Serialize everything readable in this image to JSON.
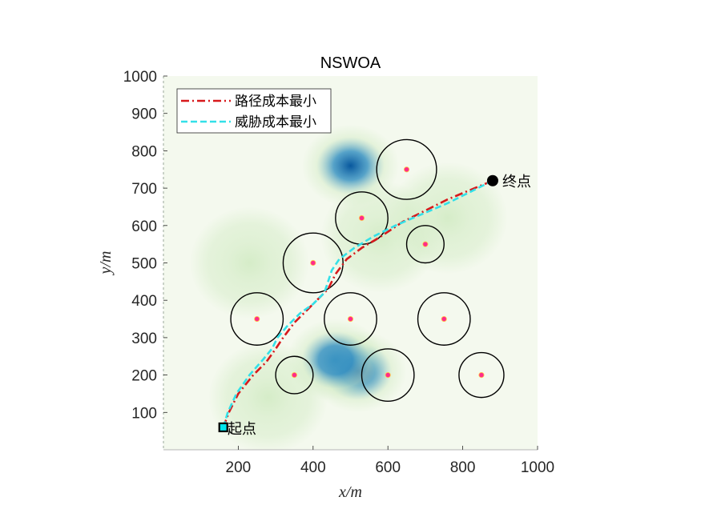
{
  "chart_data": {
    "type": "line",
    "title": "NSWOA",
    "xlabel": "x/m",
    "ylabel": "y/m",
    "xlim": [
      0,
      1000
    ],
    "ylim": [
      0,
      1000
    ],
    "xticks": [
      200,
      400,
      600,
      800,
      1000
    ],
    "yticks": [
      100,
      200,
      300,
      400,
      500,
      600,
      700,
      800,
      900,
      1000
    ],
    "grid": false,
    "legend_placement": "top-left",
    "threat_field_colors": [
      "#f4f9ee",
      "#d2ebc4",
      "#8ccac0",
      "#3a93c2",
      "#08589e"
    ],
    "threat_field_peaks": [
      {
        "x": 500,
        "y": 760,
        "strength": 1.0
      },
      {
        "x": 520,
        "y": 210,
        "strength": 0.75
      },
      {
        "x": 460,
        "y": 240,
        "strength": 0.6
      },
      {
        "x": 280,
        "y": 140,
        "strength": 0.3
      },
      {
        "x": 760,
        "y": 620,
        "strength": 0.25
      },
      {
        "x": 230,
        "y": 500,
        "strength": 0.25
      },
      {
        "x": 580,
        "y": 570,
        "strength": 0.3
      }
    ],
    "threats": [
      {
        "x": 650,
        "y": 750,
        "r": 80
      },
      {
        "x": 530,
        "y": 620,
        "r": 70
      },
      {
        "x": 700,
        "y": 550,
        "r": 50
      },
      {
        "x": 400,
        "y": 500,
        "r": 80
      },
      {
        "x": 250,
        "y": 350,
        "r": 70
      },
      {
        "x": 500,
        "y": 350,
        "r": 70
      },
      {
        "x": 750,
        "y": 350,
        "r": 70
      },
      {
        "x": 350,
        "y": 200,
        "r": 50
      },
      {
        "x": 600,
        "y": 200,
        "r": 70
      },
      {
        "x": 850,
        "y": 200,
        "r": 60
      }
    ],
    "start": {
      "x": 160,
      "y": 60,
      "label": "起点"
    },
    "goal": {
      "x": 880,
      "y": 720,
      "label": "终点"
    },
    "series": [
      {
        "name": "路径成本最小",
        "color": "#d7191c",
        "style": "dash-dot",
        "x": [
          160,
          175,
          200,
          240,
          275,
          300,
          320,
          350,
          380,
          410,
          440,
          460,
          490,
          530,
          580,
          640,
          700,
          760,
          820,
          880
        ],
        "y": [
          60,
          100,
          150,
          200,
          235,
          270,
          300,
          340,
          370,
          400,
          430,
          470,
          510,
          540,
          570,
          610,
          640,
          670,
          695,
          720
        ]
      },
      {
        "name": "威胁成本最小",
        "color": "#33e0e8",
        "style": "dashed",
        "x": [
          160,
          172,
          195,
          230,
          265,
          290,
          305,
          330,
          365,
          400,
          430,
          440,
          450,
          470,
          510,
          560,
          620,
          690,
          760,
          820,
          880
        ],
        "y": [
          60,
          100,
          150,
          200,
          240,
          270,
          300,
          330,
          365,
          390,
          420,
          450,
          480,
          510,
          540,
          570,
          600,
          630,
          660,
          690,
          720
        ]
      }
    ]
  }
}
